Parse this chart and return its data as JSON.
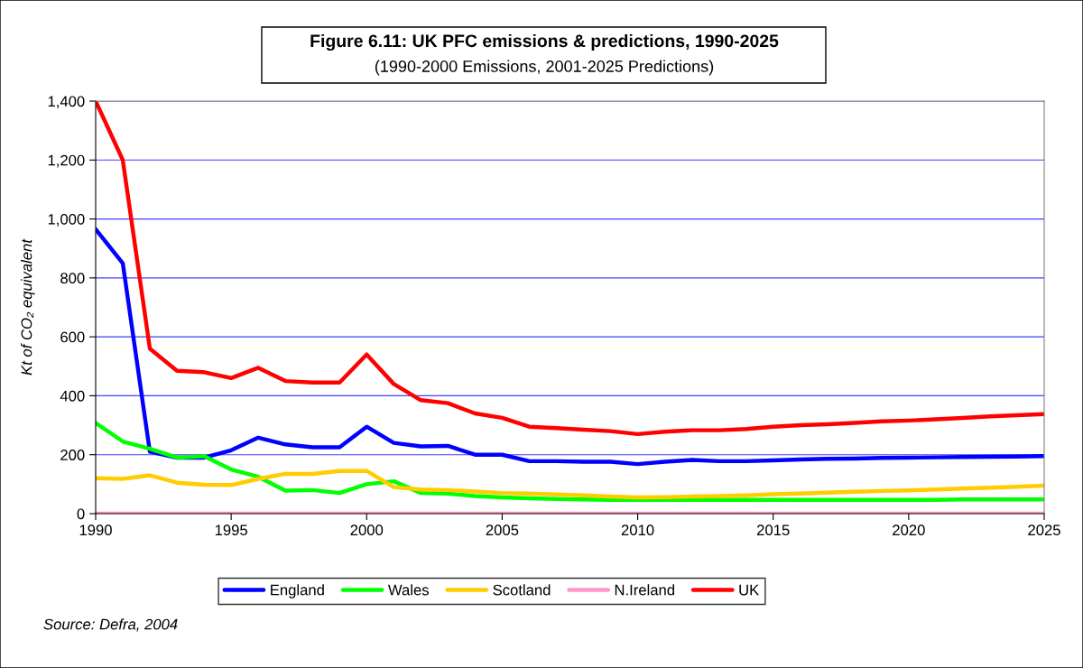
{
  "chart_data": {
    "type": "line",
    "title": "Figure 6.11: UK PFC emissions & predictions, 1990-2025",
    "subtitle": "(1990-2000 Emissions, 2001-2025 Predictions)",
    "ylabel": "Kt of CO₂ equivalent",
    "annotations": [
      "Source: Defra, 2004"
    ],
    "x": [
      1990,
      1991,
      1992,
      1993,
      1994,
      1995,
      1996,
      1997,
      1998,
      1999,
      2000,
      2001,
      2002,
      2003,
      2004,
      2005,
      2006,
      2007,
      2008,
      2009,
      2010,
      2011,
      2012,
      2013,
      2014,
      2015,
      2016,
      2017,
      2018,
      2019,
      2020,
      2021,
      2022,
      2023,
      2024,
      2025
    ],
    "series": [
      {
        "name": "England",
        "color": "#0000ff",
        "values": [
          965,
          850,
          210,
          190,
          190,
          215,
          258,
          235,
          225,
          225,
          295,
          240,
          228,
          230,
          200,
          200,
          178,
          178,
          176,
          176,
          168,
          176,
          182,
          178,
          178,
          181,
          184,
          186,
          187,
          189,
          190,
          191,
          192,
          193,
          194,
          195
        ]
      },
      {
        "name": "Wales",
        "color": "#00ff00",
        "values": [
          308,
          245,
          220,
          190,
          195,
          150,
          125,
          78,
          80,
          70,
          100,
          110,
          70,
          68,
          60,
          55,
          52,
          50,
          48,
          47,
          47,
          47,
          47,
          47,
          47,
          47,
          47,
          47,
          47,
          47,
          47,
          47,
          48,
          48,
          48,
          48
        ]
      },
      {
        "name": "Scotland",
        "color": "#ffcc00",
        "values": [
          120,
          118,
          130,
          105,
          98,
          97,
          118,
          135,
          135,
          145,
          145,
          90,
          82,
          80,
          75,
          70,
          68,
          65,
          62,
          58,
          55,
          56,
          58,
          60,
          62,
          66,
          68,
          71,
          74,
          77,
          79,
          82,
          85,
          88,
          91,
          95
        ]
      },
      {
        "name": "N.Ireland",
        "color": "#ff99cc",
        "values": [
          0,
          0,
          0,
          0,
          0,
          0,
          0,
          0,
          0,
          0,
          0,
          0,
          0,
          0,
          0,
          0,
          0,
          0,
          0,
          0,
          0,
          0,
          0,
          0,
          0,
          0,
          0,
          0,
          0,
          0,
          0,
          0,
          0,
          0,
          0,
          0
        ]
      },
      {
        "name": "UK",
        "color": "#ff0000",
        "values": [
          1400,
          1200,
          560,
          485,
          480,
          460,
          495,
          450,
          445,
          445,
          540,
          440,
          385,
          375,
          340,
          325,
          295,
          290,
          285,
          280,
          270,
          278,
          283,
          283,
          287,
          295,
          300,
          303,
          308,
          313,
          316,
          320,
          325,
          330,
          334,
          338
        ]
      }
    ],
    "xlim": [
      1990,
      2025
    ],
    "xticks": [
      1990,
      1995,
      2000,
      2005,
      2010,
      2015,
      2020,
      2025
    ],
    "ylim": [
      0,
      1400
    ],
    "yticks": [
      0,
      200,
      400,
      600,
      800,
      {
        "value": 1000,
        "label": "1,000"
      },
      {
        "value": 1200,
        "label": "1,200"
      },
      {
        "value": 1400,
        "label": "1,400"
      }
    ],
    "grid": "y",
    "legend": "bottom",
    "marker": "none",
    "line_style": "solid"
  }
}
